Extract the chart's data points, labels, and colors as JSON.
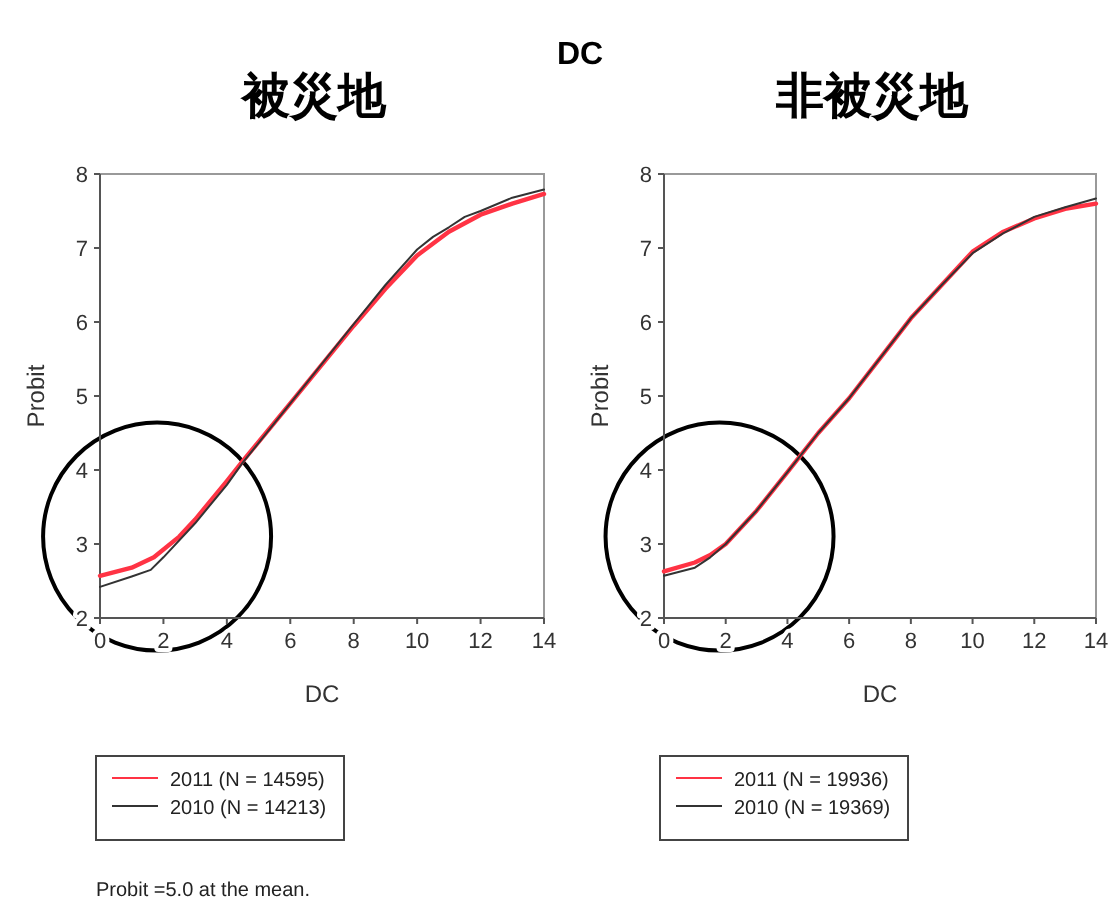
{
  "chart_data": [
    {
      "type": "line",
      "title": "被災地",
      "xlabel": "DC",
      "ylabel": "Probit",
      "xlim": [
        0,
        14
      ],
      "ylim": [
        2,
        8
      ],
      "xticks": [
        0,
        2,
        4,
        6,
        8,
        10,
        12,
        14
      ],
      "yticks": [
        2,
        3,
        4,
        5,
        6,
        7,
        8
      ],
      "legend": "bottom",
      "grid": false,
      "annotations": [
        "DC",
        "Probit =5.0 at the mean."
      ],
      "series": [
        {
          "name": "2011 (N = 14595)",
          "color": "#ff3344",
          "x": [
            0,
            1,
            1.7,
            2.5,
            3,
            4,
            4.5,
            6,
            8,
            9,
            10,
            11,
            12,
            13,
            14
          ],
          "values": [
            2.57,
            2.68,
            2.82,
            3.1,
            3.33,
            3.85,
            4.12,
            4.9,
            5.95,
            6.45,
            6.9,
            7.22,
            7.45,
            7.6,
            7.73
          ]
        },
        {
          "name": "2010 (N = 14213)",
          "color": "#333333",
          "x": [
            0,
            1,
            1.6,
            2,
            3,
            4,
            4.5,
            6,
            8,
            9,
            10,
            10.5,
            11,
            11.5,
            12,
            13,
            14
          ],
          "values": [
            2.42,
            2.56,
            2.65,
            2.82,
            3.28,
            3.8,
            4.1,
            4.9,
            5.97,
            6.5,
            6.98,
            7.15,
            7.28,
            7.42,
            7.5,
            7.68,
            7.79
          ]
        }
      ]
    },
    {
      "type": "line",
      "title": "非被災地",
      "xlabel": "DC",
      "ylabel": "Probit",
      "xlim": [
        0,
        14
      ],
      "ylim": [
        2,
        8
      ],
      "xticks": [
        0,
        2,
        4,
        6,
        8,
        10,
        12,
        14
      ],
      "yticks": [
        2,
        3,
        4,
        5,
        6,
        7,
        8
      ],
      "legend": "bottom",
      "grid": false,
      "series": [
        {
          "name": "2011 (N = 19936)",
          "color": "#ff3344",
          "x": [
            0,
            1,
            1.5,
            2,
            3,
            4,
            5,
            6,
            8,
            9,
            10,
            11,
            12,
            13,
            14
          ],
          "values": [
            2.63,
            2.75,
            2.85,
            3.0,
            3.45,
            3.97,
            4.5,
            4.97,
            6.05,
            6.5,
            6.95,
            7.22,
            7.4,
            7.53,
            7.6
          ]
        },
        {
          "name": "2010 (N = 19369)",
          "color": "#333333",
          "x": [
            0,
            1,
            1.5,
            2,
            3,
            4,
            5,
            6,
            8,
            9,
            10,
            11,
            12,
            13,
            14
          ],
          "values": [
            2.57,
            2.68,
            2.82,
            3.0,
            3.45,
            3.97,
            4.5,
            4.97,
            6.05,
            6.5,
            6.93,
            7.2,
            7.42,
            7.55,
            7.67
          ]
        }
      ]
    }
  ]
}
